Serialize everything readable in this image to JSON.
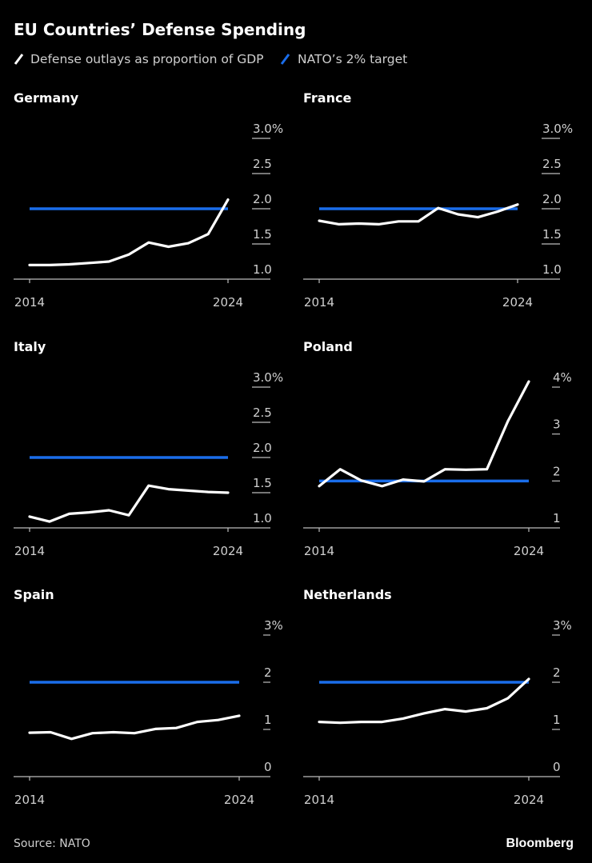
{
  "title": "EU Countries’ Defense Spending",
  "legend": [
    {
      "label": "Defense outlays as proportion of GDP",
      "color": "#ffffff"
    },
    {
      "label": "NATO’s 2% target",
      "color": "#1a6dea"
    }
  ],
  "source": "Source: NATO",
  "brand": "Bloomberg",
  "chart_data": [
    {
      "type": "line",
      "title": "Germany",
      "x": [
        2014,
        2015,
        2016,
        2017,
        2018,
        2019,
        2020,
        2021,
        2022,
        2023,
        2024
      ],
      "xticks": [
        "2014",
        "2024"
      ],
      "ylim": [
        1.0,
        3.0
      ],
      "yticks": [
        "1.0",
        "1.5",
        "2.0",
        "2.5",
        "3.0%"
      ],
      "ytick_values": [
        1.0,
        1.5,
        2.0,
        2.5,
        3.0
      ],
      "series": [
        {
          "values": [
            1.2,
            1.2,
            1.21,
            1.23,
            1.25,
            1.35,
            1.52,
            1.46,
            1.51,
            1.64,
            2.13
          ]
        }
      ],
      "target": 2.0
    },
    {
      "type": "line",
      "title": "France",
      "x": [
        2014,
        2015,
        2016,
        2017,
        2018,
        2019,
        2020,
        2021,
        2022,
        2023,
        2024
      ],
      "xticks": [
        "2014",
        "2024"
      ],
      "ylim": [
        1.0,
        3.0
      ],
      "yticks": [
        "1.0",
        "1.5",
        "2.0",
        "2.5",
        "3.0%"
      ],
      "ytick_values": [
        1.0,
        1.5,
        2.0,
        2.5,
        3.0
      ],
      "series": [
        {
          "values": [
            1.83,
            1.78,
            1.79,
            1.78,
            1.82,
            1.82,
            2.01,
            1.92,
            1.88,
            1.96,
            2.06
          ]
        }
      ],
      "target": 2.0
    },
    {
      "type": "line",
      "title": "Italy",
      "x": [
        2014,
        2015,
        2016,
        2017,
        2018,
        2019,
        2020,
        2021,
        2022,
        2023,
        2024
      ],
      "xticks": [
        "2014",
        "2024"
      ],
      "ylim": [
        1.0,
        3.0
      ],
      "yticks": [
        "1.0",
        "1.5",
        "2.0",
        "2.5",
        "3.0%"
      ],
      "ytick_values": [
        1.0,
        1.5,
        2.0,
        2.5,
        3.0
      ],
      "series": [
        {
          "values": [
            1.16,
            1.09,
            1.2,
            1.22,
            1.25,
            1.18,
            1.6,
            1.55,
            1.53,
            1.51,
            1.5
          ]
        }
      ],
      "target": 2.0
    },
    {
      "type": "line",
      "title": "Poland",
      "x": [
        2014,
        2015,
        2016,
        2017,
        2018,
        2019,
        2020,
        2021,
        2022,
        2023,
        2024
      ],
      "xticks": [
        "2014",
        "2024"
      ],
      "ylim": [
        1,
        4
      ],
      "yticks": [
        "1",
        "2",
        "3",
        "4%"
      ],
      "ytick_values": [
        1,
        2,
        3,
        4
      ],
      "series": [
        {
          "values": [
            1.89,
            2.25,
            2.01,
            1.89,
            2.03,
            1.99,
            2.25,
            2.24,
            2.25,
            3.27,
            4.12
          ]
        }
      ],
      "target": 2.0
    },
    {
      "type": "line",
      "title": "Spain",
      "x": [
        2014,
        2015,
        2016,
        2017,
        2018,
        2019,
        2020,
        2021,
        2022,
        2023,
        2024
      ],
      "xticks": [
        "2014",
        "2024"
      ],
      "ylim": [
        0,
        3
      ],
      "yticks": [
        "0",
        "1",
        "2",
        "3%"
      ],
      "ytick_values": [
        0,
        1,
        2,
        3
      ],
      "series": [
        {
          "values": [
            0.93,
            0.94,
            0.8,
            0.92,
            0.94,
            0.92,
            1.01,
            1.03,
            1.16,
            1.2,
            1.29
          ]
        }
      ],
      "target": 2.0
    },
    {
      "type": "line",
      "title": "Netherlands",
      "x": [
        2014,
        2015,
        2016,
        2017,
        2018,
        2019,
        2020,
        2021,
        2022,
        2023,
        2024
      ],
      "xticks": [
        "2014",
        "2024"
      ],
      "ylim": [
        0,
        3
      ],
      "yticks": [
        "0",
        "1",
        "2",
        "3%"
      ],
      "ytick_values": [
        0,
        1,
        2,
        3
      ],
      "series": [
        {
          "values": [
            1.16,
            1.14,
            1.16,
            1.16,
            1.23,
            1.34,
            1.43,
            1.38,
            1.45,
            1.66,
            2.07
          ]
        }
      ],
      "target": 2.0
    }
  ]
}
